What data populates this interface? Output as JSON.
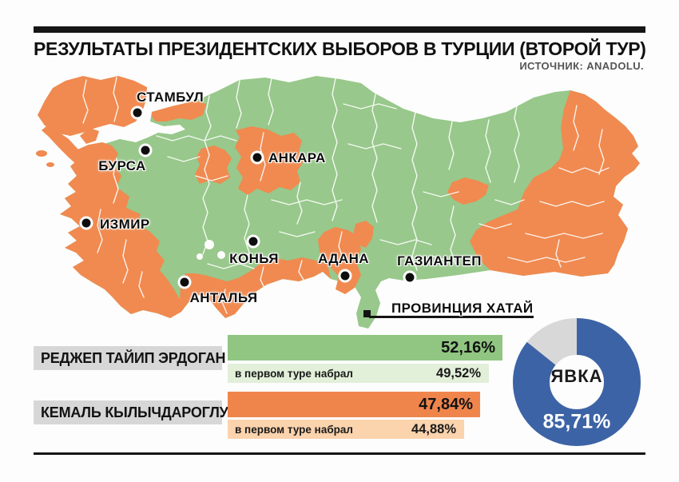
{
  "header": {
    "title": "РЕЗУЛЬТАТЫ ПРЕЗИДЕНТСКИХ ВЫБОРОВ В ТУРЦИИ (ВТОРОЙ ТУР)",
    "source": "ИСТОЧНИК: ANADOLU."
  },
  "map": {
    "colors": {
      "erdogan_province": "#98c88b",
      "kilicdaroglu_province": "#f08a50"
    },
    "cities": [
      {
        "name": "СТАМБУЛ"
      },
      {
        "name": "БУРСА"
      },
      {
        "name": "АНКАРА"
      },
      {
        "name": "ИЗМИР"
      },
      {
        "name": "КОНЬЯ"
      },
      {
        "name": "АДАНА"
      },
      {
        "name": "ГАЗИАНТЕП"
      },
      {
        "name": "АНТАЛЬЯ"
      }
    ],
    "region_callout": {
      "name": "ПРОВИНЦИЯ ХАТАЙ"
    }
  },
  "chart_data": [
    {
      "type": "bar",
      "orientation": "horizontal",
      "unit": "%",
      "series": [
        {
          "name": "РЕДЖЕП ТАЙИП ЭРДОГАН",
          "second_round_label": "52,16%",
          "second_round_value": 52.16,
          "first_round_note": "в первом туре набрал",
          "first_round_label": "49,52%",
          "first_round_value": 49.52,
          "color": "#90c681",
          "color_light": "#e2efd9"
        },
        {
          "name": "КЕМАЛЬ КЫЛЫЧДАРОГЛУ",
          "second_round_label": "47,84%",
          "second_round_value": 47.84,
          "first_round_note": "в первом туре набрал",
          "first_round_label": "44,88%",
          "first_round_value": 44.88,
          "color": "#f0854c",
          "color_light": "#fbd3ad"
        }
      ]
    },
    {
      "type": "pie",
      "subtype": "donut",
      "label": "ЯВКА",
      "value_label": "85,71%",
      "value": 85.71,
      "remainder": 14.29,
      "colors": {
        "turnout": "#3c63a5",
        "remainder": "#d8d8d8"
      }
    }
  ]
}
